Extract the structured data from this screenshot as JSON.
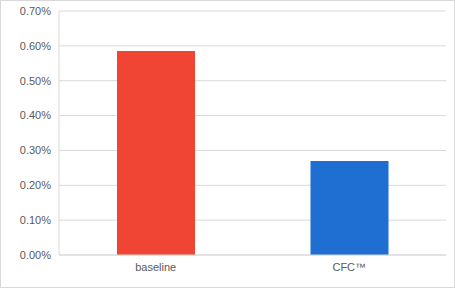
{
  "chart_data": {
    "type": "bar",
    "categories": [
      "baseline",
      "CFC™"
    ],
    "values": [
      0.585,
      0.27
    ],
    "colors": [
      "#f04434",
      "#1f6fd2"
    ],
    "ylim": [
      0,
      0.7
    ],
    "yticks": [
      {
        "value": 0,
        "label": "0.00%"
      },
      {
        "value": 0.1,
        "label": "0.10%"
      },
      {
        "value": 0.2,
        "label": "0.20%"
      },
      {
        "value": 0.3,
        "label": "0.30%"
      },
      {
        "value": 0.4,
        "label": "0.40%"
      },
      {
        "value": 0.5,
        "label": "0.50%"
      },
      {
        "value": 0.6,
        "label": "0.60%"
      },
      {
        "value": 0.7,
        "label": "0.70%"
      }
    ],
    "grid": true
  }
}
